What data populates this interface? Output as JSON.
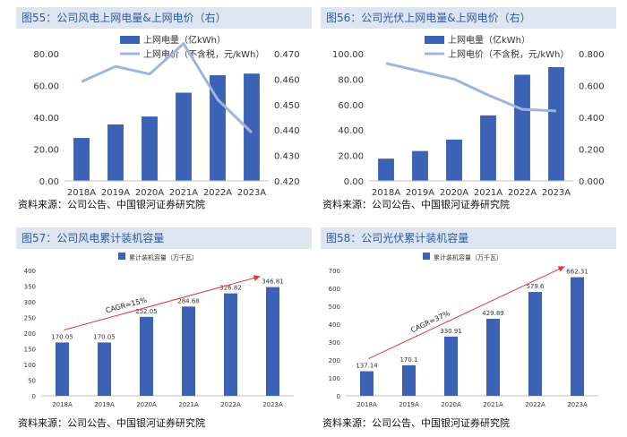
{
  "colors": {
    "bar": "#3b62b5",
    "line": "#9fb5de",
    "arrow": "#e03a3a",
    "title_bg": "#dde5f1",
    "title_text": "#2d5aa0"
  },
  "chart_data": [
    {
      "type": "bar",
      "title": "图55：公司风电上网电量&上网电价（右）",
      "source": "资料来源：公司公告、中国银河证券研究院",
      "categories": [
        "2018A",
        "2019A",
        "2020A",
        "2021A",
        "2022A",
        "2023A"
      ],
      "series": [
        {
          "name": "上网电量（亿kWh）",
          "type": "bar",
          "axis": "left",
          "values": [
            27,
            35.5,
            40.5,
            55.5,
            66.5,
            67.5
          ]
        },
        {
          "name": "上网电价（不含税，元/kWh）",
          "type": "line",
          "axis": "right",
          "values": [
            0.459,
            0.465,
            0.462,
            0.474,
            0.452,
            0.439
          ]
        }
      ],
      "ylim": [
        0,
        80
      ],
      "yticks": [
        "0.00",
        "20.00",
        "40.00",
        "60.00",
        "80.00"
      ],
      "y2lim": [
        0.42,
        0.47
      ],
      "y2ticks": [
        "0.420",
        "0.430",
        "0.440",
        "0.450",
        "0.460",
        "0.470"
      ],
      "legend": "top-center",
      "grid": false
    },
    {
      "type": "bar",
      "title": "图56：公司光伏上网电量&上网电价（右）",
      "source": "资料来源：公司公告、中国银河证券研究院",
      "categories": [
        "2018A",
        "2019A",
        "2020A",
        "2021A",
        "2022A",
        "2023A"
      ],
      "series": [
        {
          "name": "上网电量（亿kWh）",
          "type": "bar",
          "axis": "left",
          "values": [
            17.5,
            23.5,
            32.5,
            51.5,
            83.5,
            89.5
          ]
        },
        {
          "name": "上网电价（不含税，元/kWh）",
          "type": "line",
          "axis": "right",
          "values": [
            0.74,
            0.69,
            0.64,
            0.54,
            0.45,
            0.44
          ]
        }
      ],
      "ylim": [
        0,
        100
      ],
      "yticks": [
        "0.00",
        "20.00",
        "40.00",
        "60.00",
        "80.00",
        "100.00"
      ],
      "y2lim": [
        0,
        0.8
      ],
      "y2ticks": [
        "0.000",
        "0.200",
        "0.400",
        "0.600",
        "0.800"
      ],
      "legend": "top-center",
      "grid": false
    },
    {
      "type": "bar",
      "title": "图57：公司风电累计装机容量",
      "source": "资料来源：公司公告、中国银河证券研究院",
      "categories": [
        "2018A",
        "2019A",
        "2020A",
        "2021A",
        "2022A",
        "2023A"
      ],
      "series": [
        {
          "name": "累计装机容量（万千瓦）",
          "type": "bar",
          "axis": "left",
          "values": [
            170.05,
            170.05,
            252.05,
            284.68,
            326.82,
            346.81
          ],
          "labels": [
            "170.05",
            "170.05",
            "252.05",
            "284.68",
            "326.82",
            "346.81"
          ]
        }
      ],
      "ylim": [
        0,
        400
      ],
      "yticks": [
        "0",
        "50",
        "100",
        "150",
        "200",
        "250",
        "300",
        "350",
        "400"
      ],
      "annotation": "CAGR=15%",
      "legend": "top-center",
      "grid": false
    },
    {
      "type": "bar",
      "title": "图58：公司光伏累计装机容量",
      "source": "资料来源：公司公告、中国银河证券研究院",
      "categories": [
        "2018A",
        "2019A",
        "2020A",
        "2021A",
        "2022A",
        "2023A"
      ],
      "series": [
        {
          "name": "累计装机容量（万千瓦）",
          "type": "bar",
          "axis": "left",
          "values": [
            137.14,
            170.1,
            330.91,
            429.89,
            579.6,
            662.31
          ],
          "labels": [
            "137.14",
            "170.1",
            "330.91",
            "429.89",
            "579.6",
            "662.31"
          ]
        }
      ],
      "ylim": [
        0,
        700
      ],
      "yticks": [
        "0",
        "100",
        "200",
        "300",
        "400",
        "500",
        "600",
        "700"
      ],
      "annotation": "CAGR=37%",
      "legend": "top-center",
      "grid": false
    }
  ]
}
